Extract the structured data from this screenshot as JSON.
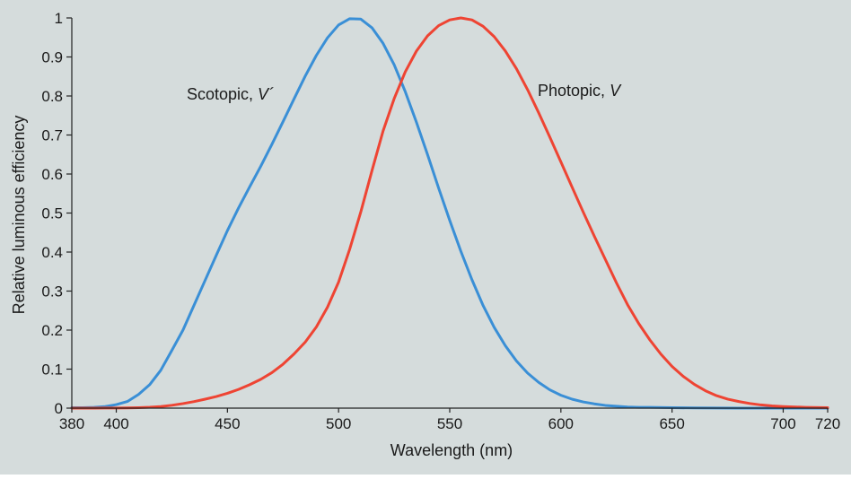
{
  "chart_data": {
    "type": "line",
    "title": "",
    "xlabel": "Wavelength (nm)",
    "ylabel": "Relative luminous efficiency",
    "xlim": [
      380,
      720
    ],
    "ylim": [
      0,
      1
    ],
    "x_ticks": [
      380,
      400,
      450,
      500,
      550,
      600,
      650,
      700,
      720
    ],
    "y_ticks": [
      0,
      0.1,
      0.2,
      0.3,
      0.4,
      0.5,
      0.6,
      0.7,
      0.8,
      0.9,
      1
    ],
    "y_tick_labels": [
      "0",
      "0.1",
      "0.2",
      "0.3",
      "0.4",
      "0.5",
      "0.6",
      "0.7",
      "0.8",
      "0.9",
      "1"
    ],
    "grid": false,
    "background_color": "#d5dcdc",
    "series": [
      {
        "name": "Scotopic, V´",
        "color": "#3a8fd6",
        "x": [
          380,
          385,
          390,
          395,
          400,
          405,
          410,
          415,
          420,
          425,
          430,
          435,
          440,
          445,
          450,
          455,
          460,
          465,
          470,
          475,
          480,
          485,
          490,
          495,
          500,
          505,
          510,
          515,
          520,
          525,
          530,
          535,
          540,
          545,
          550,
          555,
          560,
          565,
          570,
          575,
          580,
          585,
          590,
          595,
          600,
          605,
          610,
          615,
          620,
          625,
          630,
          635,
          640,
          650,
          660,
          670,
          680,
          690,
          700,
          710,
          720
        ],
        "values": [
          0.001,
          0.001,
          0.002,
          0.004,
          0.009,
          0.017,
          0.035,
          0.06,
          0.097,
          0.148,
          0.2,
          0.264,
          0.328,
          0.392,
          0.455,
          0.513,
          0.567,
          0.62,
          0.676,
          0.734,
          0.793,
          0.851,
          0.904,
          0.949,
          0.982,
          0.998,
          0.997,
          0.975,
          0.935,
          0.88,
          0.811,
          0.733,
          0.65,
          0.564,
          0.481,
          0.402,
          0.329,
          0.263,
          0.207,
          0.16,
          0.121,
          0.09,
          0.066,
          0.047,
          0.033,
          0.023,
          0.016,
          0.011,
          0.007,
          0.005,
          0.003,
          0.002,
          0.002,
          0.001,
          0.0005,
          0.0002,
          0.0001,
          0.0001,
          0.0,
          0.0,
          0.0
        ],
        "label": "Scotopic, ",
        "label_symbol": "V´"
      },
      {
        "name": "Photopic, V",
        "color": "#ee4433",
        "x": [
          380,
          385,
          390,
          395,
          400,
          405,
          410,
          415,
          420,
          425,
          430,
          435,
          440,
          445,
          450,
          455,
          460,
          465,
          470,
          475,
          480,
          485,
          490,
          495,
          500,
          505,
          510,
          515,
          520,
          525,
          530,
          535,
          540,
          545,
          550,
          555,
          560,
          565,
          570,
          575,
          580,
          585,
          590,
          595,
          600,
          605,
          610,
          615,
          620,
          625,
          630,
          635,
          640,
          645,
          650,
          655,
          660,
          665,
          670,
          675,
          680,
          685,
          690,
          695,
          700,
          710,
          720
        ],
        "values": [
          0.0,
          0.0,
          0.0001,
          0.0002,
          0.0004,
          0.0006,
          0.0012,
          0.0022,
          0.004,
          0.0073,
          0.0116,
          0.0168,
          0.023,
          0.0298,
          0.038,
          0.048,
          0.06,
          0.0739,
          0.091,
          0.1126,
          0.139,
          0.1693,
          0.208,
          0.2586,
          0.323,
          0.4073,
          0.503,
          0.6082,
          0.71,
          0.7932,
          0.862,
          0.9149,
          0.954,
          0.9803,
          0.995,
          1.0,
          0.995,
          0.9786,
          0.952,
          0.9154,
          0.87,
          0.8163,
          0.757,
          0.6949,
          0.631,
          0.5668,
          0.503,
          0.4412,
          0.381,
          0.321,
          0.265,
          0.217,
          0.175,
          0.1382,
          0.107,
          0.0816,
          0.061,
          0.0446,
          0.032,
          0.0232,
          0.017,
          0.0119,
          0.0082,
          0.0057,
          0.0041,
          0.0021,
          0.001
        ],
        "label": "Photopic, ",
        "label_symbol": "V"
      }
    ]
  }
}
